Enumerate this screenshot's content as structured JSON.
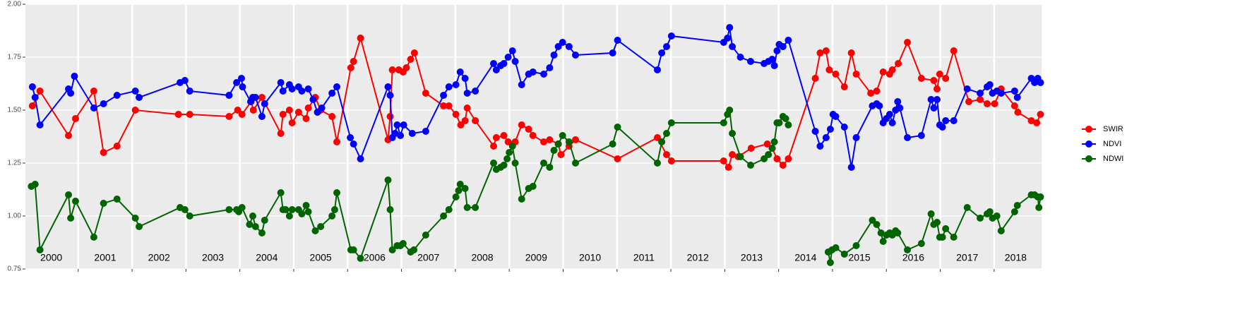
{
  "chart_data": {
    "type": "line",
    "xlim": [
      2000.02,
      2018.88
    ],
    "ylim": [
      0.75,
      2.0
    ],
    "yticks": [
      {
        "value": 0.75,
        "label": "0.75"
      },
      {
        "value": 1.0,
        "label": "1.00"
      },
      {
        "value": 1.25,
        "label": "1.25"
      },
      {
        "value": 1.5,
        "label": "1.50"
      },
      {
        "value": 1.75,
        "label": "1.75"
      },
      {
        "value": 2.0,
        "label": "2.00"
      }
    ],
    "xgrid": [
      2001,
      2002,
      2003,
      2004,
      2005,
      2006,
      2007,
      2008,
      2009,
      2010,
      2011,
      2012,
      2013,
      2014,
      2015,
      2016,
      2017,
      2018
    ],
    "xticks": [
      {
        "value": 2000.5,
        "label": "2000"
      },
      {
        "value": 2001.5,
        "label": "2001"
      },
      {
        "value": 2002.5,
        "label": "2002"
      },
      {
        "value": 2003.5,
        "label": "2003"
      },
      {
        "value": 2004.5,
        "label": "2004"
      },
      {
        "value": 2005.5,
        "label": "2005"
      },
      {
        "value": 2006.5,
        "label": "2006"
      },
      {
        "value": 2007.5,
        "label": "2007"
      },
      {
        "value": 2008.5,
        "label": "2008"
      },
      {
        "value": 2009.5,
        "label": "2009"
      },
      {
        "value": 2010.5,
        "label": "2010"
      },
      {
        "value": 2011.5,
        "label": "2011"
      },
      {
        "value": 2012.5,
        "label": "2012"
      },
      {
        "value": 2013.5,
        "label": "2013"
      },
      {
        "value": 2014.5,
        "label": "2014"
      },
      {
        "value": 2015.5,
        "label": "2015"
      },
      {
        "value": 2016.5,
        "label": "2016"
      },
      {
        "value": 2017.5,
        "label": "2017"
      },
      {
        "value": 2018.4,
        "label": "2018"
      }
    ],
    "grid": true,
    "legend": "right",
    "series": [
      {
        "name": "SWIR",
        "color": "#ff0000",
        "x": [
          2000.15,
          2000.29,
          2000.82,
          2000.95,
          2001.29,
          2001.47,
          2001.72,
          2002.06,
          2002.86,
          2003.07,
          2003.8,
          2003.96,
          2004.04,
          2004.21,
          2004.25,
          2004.41,
          2004.76,
          2004.8,
          2004.92,
          2004.97,
          2005.09,
          2005.23,
          2005.27,
          2005.4,
          2005.5,
          2005.71,
          2005.8,
          2006.06,
          2006.11,
          2006.24,
          2006.75,
          2006.79,
          2006.83,
          2006.95,
          2007.03,
          2007.09,
          2007.17,
          2007.24,
          2007.45,
          2007.78,
          2007.88,
          2008.01,
          2008.1,
          2008.18,
          2008.22,
          2008.37,
          2008.71,
          2008.76,
          2008.9,
          2008.98,
          2009.11,
          2009.23,
          2009.36,
          2009.44,
          2009.64,
          2009.75,
          2009.91,
          2009.96,
          2010.11,
          2010.23,
          2011.01,
          2011.75,
          2011.92,
          2012.01,
          2012.98,
          2013.07,
          2013.14,
          2013.25,
          2013.49,
          2013.79,
          2013.88,
          2013.97,
          2014.08,
          2014.18,
          2014.68,
          2014.77,
          2014.88,
          2014.94,
          2015.06,
          2015.22,
          2015.35,
          2015.44,
          2015.71,
          2015.82,
          2015.94,
          2016.06,
          2016.11,
          2016.22,
          2016.39,
          2016.65,
          2016.88,
          2016.94,
          2016.99,
          2017.1,
          2017.25,
          2017.53,
          2017.74,
          2017.87,
          2018.01,
          2018.13,
          2018.38,
          2018.44,
          2018.69,
          2018.79,
          2018.86
        ],
        "values": [
          1.52,
          1.59,
          1.38,
          1.46,
          1.59,
          1.3,
          1.33,
          1.5,
          1.48,
          1.48,
          1.47,
          1.5,
          1.48,
          1.54,
          1.5,
          1.56,
          1.39,
          1.48,
          1.5,
          1.44,
          1.49,
          1.46,
          1.51,
          1.56,
          1.5,
          1.47,
          1.35,
          1.7,
          1.73,
          1.84,
          1.36,
          1.47,
          1.69,
          1.69,
          1.68,
          1.7,
          1.74,
          1.77,
          1.58,
          1.52,
          1.52,
          1.48,
          1.43,
          1.45,
          1.51,
          1.45,
          1.33,
          1.37,
          1.38,
          1.35,
          1.35,
          1.43,
          1.41,
          1.38,
          1.35,
          1.36,
          1.34,
          1.29,
          1.33,
          1.36,
          1.27,
          1.37,
          1.29,
          1.26,
          1.26,
          1.23,
          1.29,
          1.28,
          1.32,
          1.34,
          1.32,
          1.27,
          1.24,
          1.27,
          1.65,
          1.77,
          1.78,
          1.69,
          1.67,
          1.61,
          1.77,
          1.67,
          1.58,
          1.59,
          1.68,
          1.67,
          1.69,
          1.72,
          1.82,
          1.65,
          1.64,
          1.6,
          1.67,
          1.65,
          1.78,
          1.54,
          1.55,
          1.53,
          1.53,
          1.6,
          1.52,
          1.49,
          1.45,
          1.44,
          1.48
        ]
      },
      {
        "name": "NDVI",
        "color": "#0000ff",
        "x": [
          2000.15,
          2000.2,
          2000.29,
          2000.82,
          2000.86,
          2000.93,
          2001.29,
          2001.47,
          2001.72,
          2002.06,
          2002.13,
          2002.89,
          2002.98,
          2003.07,
          2003.8,
          2003.94,
          2004.03,
          2004.05,
          2004.2,
          2004.24,
          2004.29,
          2004.41,
          2004.46,
          2004.76,
          2004.8,
          2004.92,
          2004.97,
          2005.09,
          2005.15,
          2005.27,
          2005.36,
          2005.44,
          2005.52,
          2005.71,
          2005.8,
          2006.05,
          2006.11,
          2006.24,
          2006.75,
          2006.79,
          2006.83,
          2006.88,
          2006.92,
          2006.98,
          2007.04,
          2007.2,
          2007.45,
          2007.78,
          2007.88,
          2008.01,
          2008.09,
          2008.18,
          2008.22,
          2008.37,
          2008.71,
          2008.76,
          2008.84,
          2008.9,
          2008.98,
          2009.06,
          2009.11,
          2009.23,
          2009.36,
          2009.44,
          2009.64,
          2009.75,
          2009.83,
          2009.91,
          2009.99,
          2010.11,
          2010.23,
          2010.92,
          2011.01,
          2011.75,
          2011.83,
          2011.92,
          2012.01,
          2012.98,
          2013.05,
          2013.09,
          2013.14,
          2013.29,
          2013.48,
          2013.73,
          2013.81,
          2013.88,
          2013.92,
          2013.97,
          2014.01,
          2014.08,
          2014.18,
          2014.68,
          2014.77,
          2014.88,
          2014.96,
          2015.01,
          2015.06,
          2015.22,
          2015.35,
          2015.44,
          2015.74,
          2015.82,
          2015.87,
          2015.94,
          2016.0,
          2016.06,
          2016.11,
          2016.17,
          2016.21,
          2016.25,
          2016.39,
          2016.65,
          2016.83,
          2016.88,
          2016.94,
          2016.99,
          2017.04,
          2017.1,
          2017.25,
          2017.5,
          2017.74,
          2017.87,
          2017.92,
          2017.97,
          2018.05,
          2018.13,
          2018.38,
          2018.43,
          2018.69,
          2018.75,
          2018.81,
          2018.86
        ],
        "values": [
          1.61,
          1.56,
          1.43,
          1.6,
          1.58,
          1.66,
          1.51,
          1.53,
          1.57,
          1.59,
          1.56,
          1.63,
          1.64,
          1.59,
          1.57,
          1.63,
          1.65,
          1.61,
          1.54,
          1.56,
          1.56,
          1.47,
          1.53,
          1.63,
          1.59,
          1.62,
          1.6,
          1.61,
          1.59,
          1.6,
          1.55,
          1.49,
          1.51,
          1.58,
          1.61,
          1.37,
          1.34,
          1.27,
          1.61,
          1.57,
          1.37,
          1.39,
          1.43,
          1.38,
          1.43,
          1.39,
          1.4,
          1.57,
          1.61,
          1.62,
          1.68,
          1.65,
          1.58,
          1.59,
          1.72,
          1.69,
          1.71,
          1.72,
          1.75,
          1.78,
          1.73,
          1.62,
          1.67,
          1.68,
          1.67,
          1.7,
          1.76,
          1.8,
          1.82,
          1.8,
          1.76,
          1.77,
          1.83,
          1.69,
          1.77,
          1.8,
          1.85,
          1.82,
          1.84,
          1.89,
          1.8,
          1.75,
          1.73,
          1.72,
          1.73,
          1.74,
          1.71,
          1.78,
          1.81,
          1.8,
          1.83,
          1.4,
          1.33,
          1.37,
          1.41,
          1.48,
          1.47,
          1.42,
          1.23,
          1.37,
          1.52,
          1.53,
          1.52,
          1.44,
          1.46,
          1.48,
          1.44,
          1.5,
          1.54,
          1.51,
          1.37,
          1.38,
          1.55,
          1.51,
          1.55,
          1.43,
          1.42,
          1.45,
          1.45,
          1.6,
          1.58,
          1.61,
          1.62,
          1.58,
          1.59,
          1.58,
          1.59,
          1.56,
          1.65,
          1.63,
          1.65,
          1.63
        ]
      },
      {
        "name": "NDWI",
        "color": "#006400",
        "x": [
          2000.13,
          2000.2,
          2000.29,
          2000.82,
          2000.86,
          2000.95,
          2001.29,
          2001.47,
          2001.72,
          2002.06,
          2002.13,
          2002.89,
          2002.98,
          2003.07,
          2003.8,
          2003.94,
          2003.98,
          2004.04,
          2004.18,
          2004.24,
          2004.29,
          2004.41,
          2004.46,
          2004.76,
          2004.8,
          2004.85,
          2004.92,
          2004.97,
          2005.09,
          2005.15,
          2005.23,
          2005.27,
          2005.4,
          2005.5,
          2005.71,
          2005.76,
          2005.8,
          2006.06,
          2006.11,
          2006.24,
          2006.75,
          2006.79,
          2006.83,
          2006.92,
          2006.98,
          2007.03,
          2007.17,
          2007.23,
          2007.45,
          2007.78,
          2007.88,
          2008.01,
          2008.06,
          2008.09,
          2008.18,
          2008.22,
          2008.37,
          2008.71,
          2008.76,
          2008.84,
          2008.9,
          2008.96,
          2009.0,
          2009.06,
          2009.11,
          2009.23,
          2009.36,
          2009.44,
          2009.64,
          2009.75,
          2009.83,
          2009.91,
          2009.99,
          2010.11,
          2010.23,
          2010.92,
          2011.01,
          2011.75,
          2011.83,
          2011.92,
          2012.01,
          2012.98,
          2013.05,
          2013.09,
          2013.14,
          2013.29,
          2013.48,
          2013.73,
          2013.81,
          2013.88,
          2013.92,
          2013.97,
          2014.01,
          2014.08,
          2014.13,
          2014.18,
          null,
          2014.92,
          2014.96,
          2014.99,
          2015.06,
          2015.22,
          2015.44,
          2015.74,
          2015.82,
          2015.9,
          2015.94,
          2016.0,
          2016.06,
          2016.11,
          2016.17,
          2016.21,
          2016.39,
          2016.65,
          2016.83,
          2016.88,
          2016.94,
          2016.99,
          2017.04,
          2017.1,
          2017.25,
          2017.5,
          2017.74,
          2017.87,
          2017.92,
          2017.97,
          2018.05,
          2018.13,
          2018.38,
          2018.43,
          2018.69,
          2018.75,
          2018.81,
          2018.83,
          2018.86
        ],
        "values": [
          1.14,
          1.15,
          0.84,
          1.1,
          0.99,
          1.07,
          0.9,
          1.06,
          1.08,
          0.99,
          0.95,
          1.04,
          1.03,
          1.0,
          1.03,
          1.03,
          1.02,
          1.04,
          0.96,
          1.0,
          0.95,
          0.92,
          0.98,
          1.11,
          1.03,
          1.03,
          1.0,
          1.03,
          1.03,
          1.01,
          1.05,
          1.02,
          0.93,
          0.95,
          1.0,
          1.03,
          1.11,
          0.84,
          0.84,
          0.8,
          1.17,
          1.03,
          0.84,
          0.86,
          0.86,
          0.87,
          0.83,
          0.84,
          0.91,
          1.0,
          1.03,
          1.09,
          1.12,
          1.15,
          1.13,
          1.04,
          1.04,
          1.25,
          1.22,
          1.23,
          1.24,
          1.27,
          1.3,
          1.33,
          1.25,
          1.08,
          1.13,
          1.14,
          1.25,
          1.23,
          1.31,
          1.34,
          1.38,
          1.35,
          1.25,
          1.34,
          1.42,
          1.25,
          1.35,
          1.39,
          1.44,
          1.44,
          1.48,
          1.5,
          1.39,
          1.28,
          1.24,
          1.27,
          1.29,
          1.32,
          1.35,
          1.44,
          1.44,
          1.47,
          1.46,
          1.43,
          null,
          0.83,
          0.78,
          0.84,
          0.85,
          0.82,
          0.86,
          0.98,
          0.96,
          0.92,
          0.88,
          0.91,
          0.92,
          0.91,
          0.93,
          0.92,
          0.84,
          0.87,
          1.01,
          0.96,
          0.97,
          0.9,
          0.9,
          0.94,
          0.9,
          1.04,
          0.99,
          1.01,
          1.02,
          0.99,
          1.0,
          0.93,
          1.02,
          1.05,
          1.1,
          1.1,
          1.09,
          1.04,
          1.09
        ]
      }
    ]
  }
}
